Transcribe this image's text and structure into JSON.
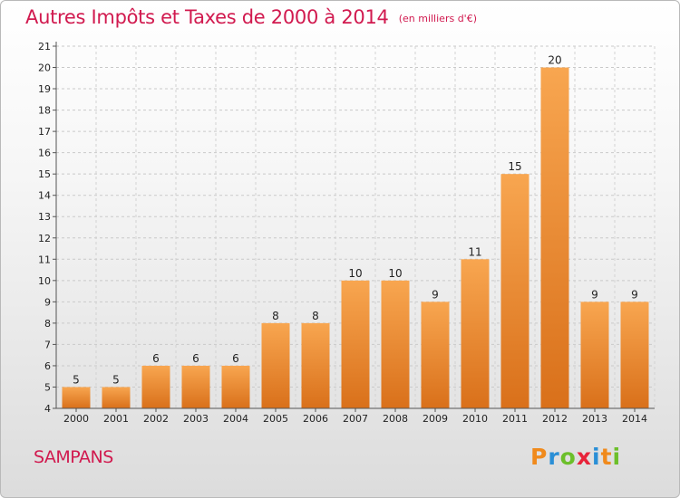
{
  "title": "Autres Impôts et Taxes de 2000 à 2014",
  "subtitle": "(en milliers d'€)",
  "commune": "SAMPANS",
  "logo": {
    "text": "Proxiti",
    "letters": [
      "P",
      "r",
      "o",
      "x",
      "i",
      "t",
      "i"
    ],
    "colors": [
      "#f08a1c",
      "#2a8fd6",
      "#6cbf2a",
      "#e8233a",
      "#2a8fd6",
      "#f08a1c",
      "#6cbf2a"
    ]
  },
  "colors": {
    "accent": "#d11a4f",
    "bar_top": "#f8a650",
    "bar_bottom": "#d9701a"
  },
  "chart_data": {
    "type": "bar",
    "categories": [
      "2000",
      "2001",
      "2002",
      "2003",
      "2004",
      "2005",
      "2006",
      "2007",
      "2008",
      "2009",
      "2010",
      "2011",
      "2012",
      "2013",
      "2014"
    ],
    "values": [
      5,
      5,
      6,
      6,
      6,
      8,
      8,
      10,
      10,
      9,
      11,
      15,
      20,
      9,
      9
    ],
    "title": "Autres Impôts et Taxes de 2000 à 2014",
    "subtitle": "(en milliers d'€)",
    "ylim": [
      4,
      21
    ],
    "yticks": [
      4,
      5,
      6,
      7,
      8,
      9,
      10,
      11,
      12,
      13,
      14,
      15,
      16,
      17,
      18,
      19,
      20,
      21
    ],
    "grid": true
  }
}
